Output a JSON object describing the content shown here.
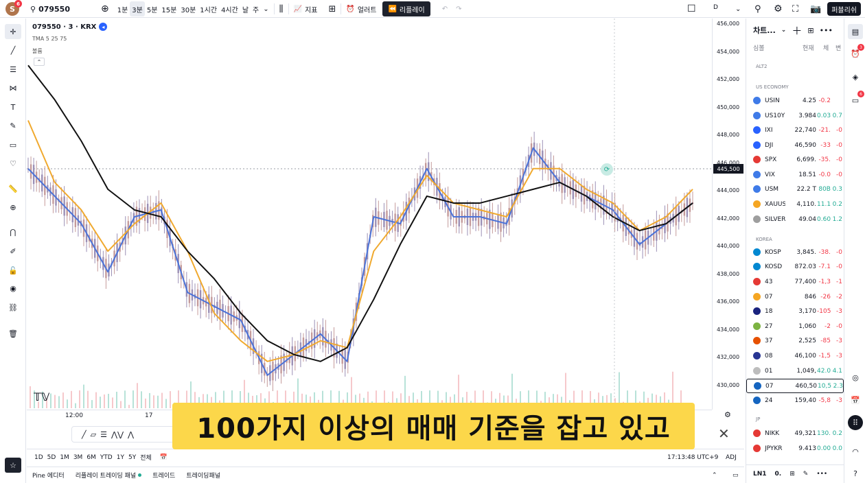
{
  "topbar": {
    "avatar_letter": "S",
    "notif_count": "6",
    "symbol": "079550",
    "intervals": [
      "1분",
      "3분",
      "5분",
      "15분",
      "30분",
      "1시간",
      "4시간",
      "날",
      "주"
    ],
    "active_interval": "3분",
    "indicators_label": "지표",
    "alert_label": "얼러트",
    "replay_label": "리플레이",
    "d_label": "D",
    "publish_label": "퍼블리쉬"
  },
  "chart": {
    "legend_title": "079550 · 3 · KRX",
    "tma_label": "TMA 5 25 75",
    "volume_label": "볼륨",
    "current_price": "445,500",
    "price_labels": [
      "456,000",
      "454,000",
      "452,000",
      "450,000",
      "448,000",
      "446,000",
      "444,000",
      "442,000",
      "440,000",
      "438,000",
      "436,000",
      "434,000",
      "432,000",
      "430,000"
    ],
    "time_labels": [
      "12:00",
      "17"
    ]
  },
  "chart_data": {
    "type": "line",
    "title": "079550 · 3 · KRX",
    "ylabel": "",
    "ylim": [
      429000,
      456500
    ],
    "x": [
      0,
      10,
      20,
      30,
      40,
      50,
      60,
      70,
      80,
      90,
      100,
      110,
      120,
      130,
      140,
      150,
      160,
      170,
      180,
      190,
      200,
      210,
      220,
      230,
      240,
      250
    ],
    "series": [
      {
        "name": "TMA 5",
        "values": [
          446000,
          444000,
          442000,
          438500,
          442500,
          443000,
          437000,
          436000,
          435000,
          431000,
          432500,
          434000,
          432000,
          442500,
          442000,
          446000,
          442500,
          442500,
          442000,
          447500,
          445000,
          444000,
          443000,
          440500,
          442000,
          443500
        ]
      },
      {
        "name": "TMA 25",
        "values": [
          449500,
          445000,
          443000,
          440000,
          442000,
          443500,
          440000,
          435500,
          433500,
          432000,
          432500,
          433500,
          433000,
          440000,
          442500,
          445500,
          443500,
          443000,
          442500,
          446000,
          446000,
          444500,
          443500,
          441500,
          442500,
          444500
        ]
      },
      {
        "name": "TMA 75",
        "values": [
          453500,
          451000,
          448000,
          444500,
          443000,
          442500,
          440000,
          438000,
          435500,
          433500,
          432500,
          432000,
          433000,
          436500,
          440500,
          444000,
          443500,
          443500,
          444000,
          444500,
          445000,
          444000,
          442500,
          441500,
          442000,
          443500
        ]
      }
    ]
  },
  "bottom": {
    "ranges": [
      "1D",
      "5D",
      "1M",
      "3M",
      "6M",
      "YTD",
      "1Y",
      "5Y",
      "전체"
    ],
    "clock": "17:13:48 UTC+9",
    "adj": "ADJ"
  },
  "footer": {
    "tabs": [
      "Pine 에디터",
      "리플레이 트레이딩 패널",
      "트레이드",
      "트레이딩패널"
    ]
  },
  "subtitle": "100가지 이상의 매매 기준을 잡고 있고",
  "watchlist": {
    "header": "차트...",
    "columns": [
      "심볼",
      "현재",
      "체",
      "변"
    ],
    "sections": [
      "ALT2",
      "US ECONOMY",
      "KOREA",
      "JP"
    ],
    "rows": [
      {
        "sym": "USIN",
        "last": "4.25",
        "chg": "-0.2",
        "chgp": "",
        "color": "#3f7be8"
      },
      {
        "sym": "US10Y",
        "last": "3.984",
        "chg": "0.03",
        "chgp": "0.7",
        "color": "#3f7be8"
      },
      {
        "sym": "IXI",
        "last": "22,740",
        "chg": "-21.",
        "chgp": "-0",
        "color": "#2962ff"
      },
      {
        "sym": "DJI",
        "last": "46,590",
        "chg": "-33",
        "chgp": "-0",
        "color": "#2962ff"
      },
      {
        "sym": "SPX",
        "last": "6,699.",
        "chg": "-35.",
        "chgp": "-0",
        "color": "#e53935"
      },
      {
        "sym": "VIX",
        "last": "18.51",
        "chg": "-0.0",
        "chgp": "-0",
        "color": "#3f7be8"
      },
      {
        "sym": "USM",
        "last": "22.2 T",
        "chg": "80B",
        "chgp": "0.3",
        "color": "#3f7be8"
      },
      {
        "sym": "XAUUS",
        "last": "4,110.",
        "chg": "11.1",
        "chgp": "0.2",
        "color": "#f5a623"
      },
      {
        "sym": "SILVER",
        "last": "49.04",
        "chg": "0.60",
        "chgp": "1.2",
        "color": "#9e9e9e"
      },
      {
        "sym": "KOSP",
        "last": "3,845.",
        "chg": "-38.",
        "chgp": "-0",
        "color": "#0288d1"
      },
      {
        "sym": "KOSD",
        "last": "872.03",
        "chg": "-7.1",
        "chgp": "-0",
        "color": "#0288d1"
      },
      {
        "sym": "43",
        "last": "77,400",
        "chg": "-1,3",
        "chgp": "-1",
        "color": "#e53935"
      },
      {
        "sym": "07",
        "last": "846",
        "chg": "-26",
        "chgp": "-2",
        "color": "#f5a623"
      },
      {
        "sym": "18",
        "last": "3,170",
        "chg": "-105",
        "chgp": "-3",
        "color": "#1a237e"
      },
      {
        "sym": "27",
        "last": "1,060",
        "chg": "-2",
        "chgp": "-0",
        "color": "#7cb342"
      },
      {
        "sym": "37",
        "last": "2,525",
        "chg": "-85",
        "chgp": "-3",
        "color": "#e65100"
      },
      {
        "sym": "08",
        "last": "46,100",
        "chg": "-1,5",
        "chgp": "-3",
        "color": "#283593"
      },
      {
        "sym": "01",
        "last": "1,049,",
        "chg": "42.0",
        "chgp": "4.1",
        "color": "#bdbdbd"
      },
      {
        "sym": "07",
        "last": "460,50",
        "chg": "10,5",
        "chgp": "2.3",
        "color": "#1565c0"
      },
      {
        "sym": "24",
        "last": "159,40",
        "chg": "-5,8",
        "chgp": "-3",
        "color": "#1565c0"
      },
      {
        "sym": "NIKK",
        "last": "49,321",
        "chg": "130.",
        "chgp": "0.2",
        "color": "#e53935"
      },
      {
        "sym": "JPYKR",
        "last": "9.413",
        "chg": "0.00",
        "chgp": "0.0",
        "color": "#e53935"
      }
    ],
    "bottom_label": "LN1",
    "bottom_sym": "0."
  },
  "colors": {
    "tma5": "#4a72d8",
    "tma25": "#f0a92e",
    "tma75": "#111111",
    "up": "#22ab94",
    "down": "#f23645",
    "highlight": "#fcd74a"
  }
}
